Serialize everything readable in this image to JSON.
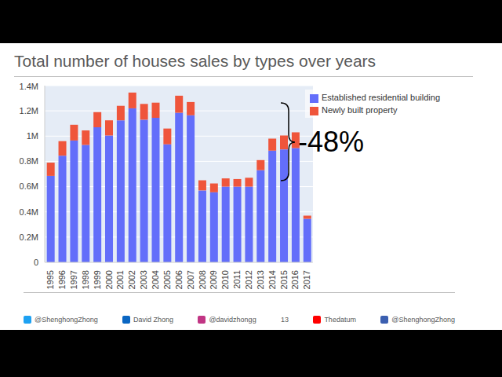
{
  "chart_data": {
    "type": "bar",
    "title": "Total number of houses sales by types over years",
    "categories": [
      "1995",
      "1996",
      "1997",
      "1998",
      "1999",
      "2000",
      "2001",
      "2002",
      "2003",
      "2004",
      "2005",
      "2006",
      "2007",
      "2008",
      "2009",
      "2010",
      "2011",
      "2012",
      "2013",
      "2014",
      "2015",
      "2016",
      "2017"
    ],
    "series": [
      {
        "name": "Established residential building",
        "color": "#636efa",
        "values": [
          685000,
          845000,
          965000,
          930000,
          1070000,
          1005000,
          1125000,
          1220000,
          1130000,
          1145000,
          935000,
          1185000,
          1165000,
          570000,
          555000,
          600000,
          600000,
          600000,
          730000,
          885000,
          895000,
          905000,
          345000
        ]
      },
      {
        "name": "Newly built property",
        "color": "#ef553b",
        "values": [
          105000,
          115000,
          125000,
          115000,
          120000,
          120000,
          115000,
          125000,
          125000,
          120000,
          125000,
          135000,
          105000,
          80000,
          70000,
          65000,
          60000,
          70000,
          80000,
          95000,
          110000,
          125000,
          25000
        ]
      }
    ],
    "ylim": [
      0,
      1400000
    ],
    "yticks": [
      0,
      {
        "value": 200000,
        "label": "0.2M"
      },
      {
        "value": 400000,
        "label": "0.4M"
      },
      {
        "value": 600000,
        "label": "0.6M"
      },
      {
        "value": 800000,
        "label": "0.8M"
      },
      {
        "value": 1000000,
        "label": "1M"
      },
      {
        "value": 1200000,
        "label": "1.2M"
      },
      {
        "value": 1400000,
        "label": "1.4M"
      }
    ],
    "stacked": true,
    "grid": true,
    "legend": "upper right",
    "annotations": [
      "-48%"
    ],
    "footer": [
      "@ShenghongZhong",
      "David Zhong",
      "@davidzhongg",
      "13",
      "Thedatum",
      "@ShenghongZhong"
    ]
  }
}
